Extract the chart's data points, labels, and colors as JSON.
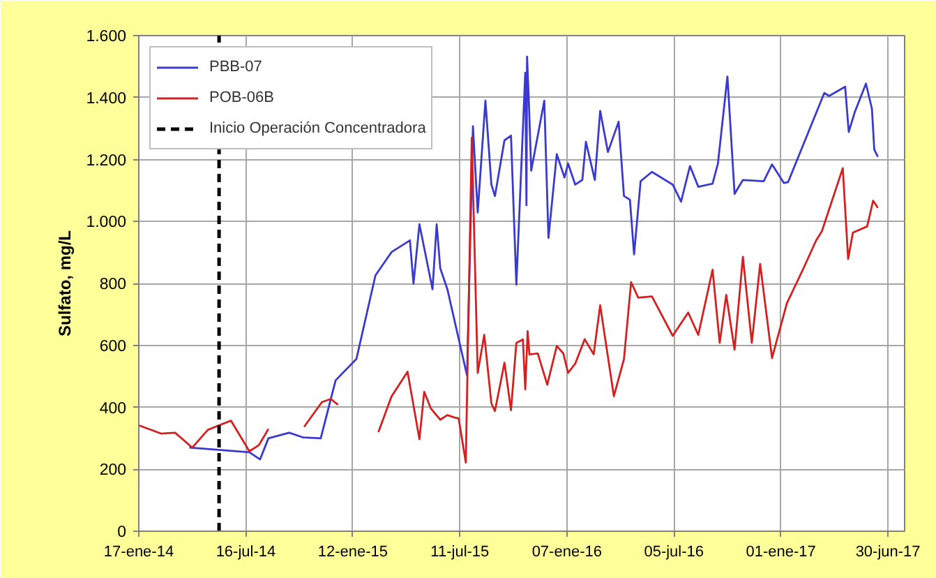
{
  "chart_data": {
    "type": "line",
    "ylabel": "Sulfato, mg/L",
    "grid": true,
    "legend": "top left",
    "xlim": [
      "2014-01-17",
      "2017-07-28"
    ],
    "xticks": [
      {
        "value": "2014-01-17",
        "label": "17-ene-14"
      },
      {
        "value": "2014-07-16",
        "label": "16-jul-14"
      },
      {
        "value": "2015-01-12",
        "label": "12-ene-15"
      },
      {
        "value": "2015-07-11",
        "label": "11-jul-15"
      },
      {
        "value": "2016-01-07",
        "label": "07-ene-16"
      },
      {
        "value": "2016-07-05",
        "label": "05-jul-16"
      },
      {
        "value": "2017-01-01",
        "label": "01-ene-17"
      },
      {
        "value": "2017-06-30",
        "label": "30-jun-17"
      }
    ],
    "ylim": [
      0,
      1600
    ],
    "yticks": [
      0,
      200,
      400,
      600,
      800,
      {
        "value": 1000,
        "label": "1.000"
      },
      {
        "value": 1200,
        "label": "1.200"
      },
      {
        "value": 1400,
        "label": "1.400"
      },
      {
        "value": 1600,
        "label": "1.600"
      }
    ],
    "series": [
      {
        "name": "PBB-07",
        "color": "#3a3acf",
        "x": [
          "2014-04-12",
          "2014-07-22",
          "2014-08-09",
          "2014-08-23",
          "2014-09-27",
          "2014-10-20",
          "2014-11-19",
          "2014-12-14",
          "2015-01-18",
          "2015-02-19",
          "2015-03-18",
          "2015-04-18",
          "2015-04-24",
          "2015-05-04",
          "2015-05-26",
          "2015-06-02",
          "2015-06-08",
          "2015-06-20",
          "2015-07-23",
          "2015-08-02",
          "2015-08-10",
          "2015-08-23",
          "2015-09-02",
          "2015-09-08",
          "2015-09-24",
          "2015-10-05",
          "2015-10-14",
          "2015-10-29",
          "2015-10-31",
          "2015-11-01",
          "2015-11-04",
          "2015-11-08",
          "2015-11-30",
          "2015-12-07",
          "2015-12-21",
          "2016-01-03",
          "2016-01-09",
          "2016-01-21",
          "2016-02-02",
          "2016-02-08",
          "2016-02-23",
          "2016-03-03",
          "2016-03-16",
          "2016-04-03",
          "2016-04-12",
          "2016-04-22",
          "2016-04-29",
          "2016-05-10",
          "2016-05-29",
          "2016-07-03",
          "2016-07-17",
          "2016-08-01",
          "2016-08-15",
          "2016-09-08",
          "2016-09-17",
          "2016-10-03",
          "2016-10-15",
          "2016-10-29",
          "2016-12-03",
          "2016-12-17",
          "2017-01-06",
          "2017-01-13",
          "2017-03-15",
          "2017-03-23",
          "2017-04-19",
          "2017-04-25",
          "2017-05-05",
          "2017-05-24",
          "2017-06-03",
          "2017-06-07",
          "2017-06-13"
        ],
        "values": [
          270,
          255,
          232,
          300,
          318,
          303,
          300,
          487,
          556,
          826,
          901,
          939,
          799,
          991,
          781,
          991,
          849,
          781,
          503,
          1307,
          1029,
          1390,
          1119,
          1082,
          1262,
          1277,
          796,
          1480,
          1052,
          1532,
          1390,
          1164,
          1390,
          947,
          1217,
          1142,
          1187,
          1119,
          1134,
          1257,
          1134,
          1357,
          1224,
          1322,
          1082,
          1070,
          894,
          1130,
          1160,
          1119,
          1064,
          1179,
          1112,
          1122,
          1187,
          1468,
          1089,
          1134,
          1130,
          1184,
          1124,
          1127,
          1415,
          1405,
          1435,
          1289,
          1352,
          1445,
          1364,
          1232,
          1209
        ]
      },
      {
        "name": "POB-06B",
        "color": "#d42020",
        "x": [
          "2014-01-17",
          "2014-02-24",
          "2014-03-19",
          "2014-04-17",
          "2014-05-13",
          "2014-06-01",
          "2014-06-21",
          "2014-07-22",
          "2014-08-07",
          "2014-08-23",
          "2014-09-25",
          "2014-10-22",
          "2014-11-21",
          "2014-12-06",
          "2014-12-18",
          "2015-01-20",
          "2015-02-24",
          "2015-03-18",
          "2015-04-14",
          "2015-05-04",
          "2015-05-12",
          "2015-05-23",
          "2015-06-08",
          "2015-06-20",
          "2015-07-02",
          "2015-07-09",
          "2015-07-21",
          "2015-07-31",
          "2015-08-10",
          "2015-08-21",
          "2015-09-02",
          "2015-09-08",
          "2015-09-24",
          "2015-10-05",
          "2015-10-14",
          "2015-10-25",
          "2015-10-29",
          "2015-11-02",
          "2015-11-05",
          "2015-11-19",
          "2015-12-05",
          "2015-12-21",
          "2016-01-01",
          "2016-01-09",
          "2016-01-21",
          "2016-02-06",
          "2016-02-21",
          "2016-03-03",
          "2016-03-26",
          "2016-04-12",
          "2016-04-24",
          "2016-05-06",
          "2016-05-29",
          "2016-07-03",
          "2016-07-29",
          "2016-08-15",
          "2016-09-08",
          "2016-09-20",
          "2016-10-01",
          "2016-10-15",
          "2016-10-29",
          "2016-11-13",
          "2016-11-27",
          "2016-12-17",
          "2017-01-11",
          "2017-02-08",
          "2017-03-01",
          "2017-03-11",
          "2017-04-15",
          "2017-04-24",
          "2017-05-02",
          "2017-05-26",
          "2017-06-05",
          "2017-06-13"
        ],
        "values": [
          342,
          315,
          318,
          270,
          327,
          342,
          357,
          258,
          278,
          330,
          null,
          337,
          417,
          427,
          408,
          null,
          320,
          435,
          515,
          297,
          450,
          397,
          360,
          375,
          367,
          364,
          222,
          1270,
          511,
          634,
          413,
          388,
          544,
          391,
          608,
          619,
          458,
          646,
          571,
          574,
          473,
          598,
          574,
          511,
          541,
          620,
          571,
          729,
          436,
          556,
          804,
          754,
          758,
          631,
          706,
          634,
          844,
          608,
          763,
          586,
          886,
          608,
          863,
          559,
          736,
          849,
          938,
          969,
          1172,
          879,
          964,
          984,
          1067,
          1044
        ]
      }
    ],
    "ref_lines": [
      {
        "axis": "x",
        "value": "2014-06-01",
        "label": "Inicio Operación Concentradora",
        "color": "#000000",
        "line_style": "dashed"
      }
    ]
  }
}
